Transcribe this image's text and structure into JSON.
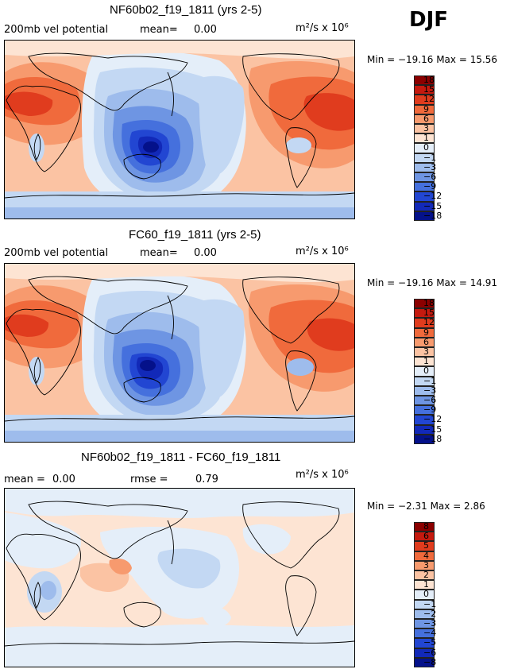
{
  "season": "DJF",
  "units": "m²/s x 10⁶",
  "panels": [
    {
      "title": "NF60b02_f19_1811 (yrs 2-5)",
      "left_label": "200mb vel potential",
      "stat_label": "mean=",
      "stat_value": "0.00",
      "extra_label": "",
      "extra_value": "",
      "minmax": "Min = −19.16  Max =   15.56",
      "colorbar": {
        "colors": [
          "#8b0000",
          "#c51a0f",
          "#e03c1e",
          "#f06a3c",
          "#f79a6e",
          "#fbc3a3",
          "#fde4d3",
          "#e4eef9",
          "#c3d8f3",
          "#9ebcec",
          "#6e95e3",
          "#4570dd",
          "#2246d2",
          "#1229b8",
          "#04118a"
        ],
        "ticks": [
          "18",
          "15",
          "12",
          "9",
          "6",
          "3",
          "1",
          "0",
          "−1",
          "−3",
          "−6",
          "−9",
          "−12",
          "−15",
          "−18"
        ]
      }
    },
    {
      "title": "FC60_f19_1811 (yrs 2-5)",
      "left_label": "200mb vel potential",
      "stat_label": "mean=",
      "stat_value": "0.00",
      "extra_label": "",
      "extra_value": "",
      "minmax": "Min = −19.16  Max =   14.91",
      "colorbar": {
        "colors": [
          "#8b0000",
          "#c51a0f",
          "#e03c1e",
          "#f06a3c",
          "#f79a6e",
          "#fbc3a3",
          "#fde4d3",
          "#e4eef9",
          "#c3d8f3",
          "#9ebcec",
          "#6e95e3",
          "#4570dd",
          "#2246d2",
          "#1229b8",
          "#04118a"
        ],
        "ticks": [
          "18",
          "15",
          "12",
          "9",
          "6",
          "3",
          "1",
          "0",
          "−1",
          "−3",
          "−6",
          "−9",
          "−12",
          "−15",
          "−18"
        ]
      }
    },
    {
      "title": "NF60b02_f19_1811 - FC60_f19_1811",
      "left_label": "mean =",
      "stat_label": "",
      "stat_value": "0.00",
      "extra_label": "rmse =",
      "extra_value": "0.79",
      "minmax": "Min = −2.31  Max =    2.86",
      "colorbar": {
        "colors": [
          "#8b0000",
          "#c51a0f",
          "#e03c1e",
          "#f06a3c",
          "#f79a6e",
          "#fbc3a3",
          "#fde4d3",
          "#e4eef9",
          "#c3d8f3",
          "#9ebcec",
          "#6e95e3",
          "#4570dd",
          "#2246d2",
          "#1229b8",
          "#04118a"
        ],
        "ticks": [
          "8",
          "6",
          "5",
          "4",
          "3",
          "2",
          "1",
          "0",
          "−1",
          "−2",
          "−3",
          "−4",
          "−5",
          "−6",
          "−8"
        ]
      }
    }
  ],
  "chart_data": [
    {
      "type": "heatmap",
      "title": "NF60b02_f19_1811 (yrs 2-5)",
      "field": "200mb vel potential",
      "season": "DJF",
      "mean": 0.0,
      "min": -19.16,
      "max": 15.56,
      "units": "m²/s x 10⁶",
      "contour_levels": [
        -18,
        -15,
        -12,
        -9,
        -6,
        -3,
        -1,
        0,
        1,
        3,
        6,
        9,
        12,
        15,
        18
      ]
    },
    {
      "type": "heatmap",
      "title": "FC60_f19_1811 (yrs 2-5)",
      "field": "200mb vel potential",
      "season": "DJF",
      "mean": 0.0,
      "min": -19.16,
      "max": 14.91,
      "units": "m²/s x 10⁶",
      "contour_levels": [
        -18,
        -15,
        -12,
        -9,
        -6,
        -3,
        -1,
        0,
        1,
        3,
        6,
        9,
        12,
        15,
        18
      ]
    },
    {
      "type": "heatmap",
      "title": "NF60b02_f19_1811 - FC60_f19_1811",
      "season": "DJF",
      "mean": 0.0,
      "rmse": 0.79,
      "min": -2.31,
      "max": 2.86,
      "units": "m²/s x 10⁶",
      "contour_levels": [
        -8,
        -6,
        -5,
        -4,
        -3,
        -2,
        -1,
        0,
        1,
        2,
        3,
        4,
        5,
        6,
        8
      ]
    }
  ]
}
